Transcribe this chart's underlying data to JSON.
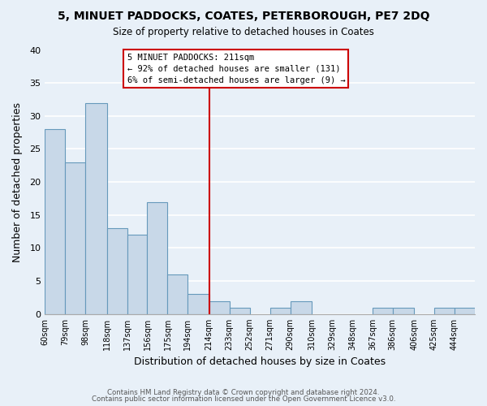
{
  "title": "5, MINUET PADDOCKS, COATES, PETERBOROUGH, PE7 2DQ",
  "subtitle": "Size of property relative to detached houses in Coates",
  "xlabel": "Distribution of detached houses by size in Coates",
  "ylabel": "Number of detached properties",
  "bin_edges": [
    60,
    79,
    98,
    118,
    137,
    156,
    175,
    194,
    214,
    233,
    252,
    271,
    290,
    310,
    329,
    348,
    367,
    386,
    406,
    425,
    444,
    463
  ],
  "bar_heights": [
    28,
    23,
    32,
    13,
    12,
    17,
    6,
    3,
    2,
    1,
    0,
    1,
    2,
    0,
    0,
    0,
    1,
    1,
    0,
    1,
    1
  ],
  "bar_color": "#c8d8e8",
  "bar_edge_color": "#6699bb",
  "vline_x": 214,
  "vline_color": "#cc0000",
  "ylim": [
    0,
    40
  ],
  "yticks": [
    0,
    5,
    10,
    15,
    20,
    25,
    30,
    35,
    40
  ],
  "annotation_title": "5 MINUET PADDOCKS: 211sqm",
  "annotation_line1": "← 92% of detached houses are smaller (131)",
  "annotation_line2": "6% of semi-detached houses are larger (9) →",
  "annotation_box_color": "#ffffff",
  "annotation_box_edge": "#cc0000",
  "footnote1": "Contains HM Land Registry data © Crown copyright and database right 2024.",
  "footnote2": "Contains public sector information licensed under the Open Government Licence v3.0.",
  "background_color": "#e8f0f8",
  "tick_labels": [
    "60sqm",
    "79sqm",
    "98sqm",
    "118sqm",
    "137sqm",
    "156sqm",
    "175sqm",
    "194sqm",
    "214sqm",
    "233sqm",
    "252sqm",
    "271sqm",
    "290sqm",
    "310sqm",
    "329sqm",
    "348sqm",
    "367sqm",
    "386sqm",
    "406sqm",
    "425sqm",
    "444sqm"
  ]
}
